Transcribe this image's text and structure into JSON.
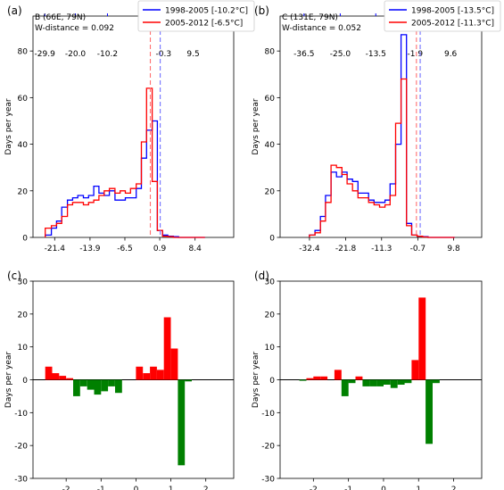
{
  "chart_data": [
    {
      "type": "line",
      "panel_label": "(a)",
      "site": "B (66E, 79N)",
      "metric": "W-distance = 0.092",
      "ylabel": "Days per year",
      "ylim": [
        0,
        95
      ],
      "xlim": [
        -26,
        16.6
      ],
      "yticks": [
        "0",
        "20",
        "40",
        "60",
        "80"
      ],
      "yticks_values": [
        0,
        20,
        40,
        60,
        80
      ],
      "xticks": [
        "-21.4",
        "-13.9",
        "-6.5",
        "0.9",
        "8.4"
      ],
      "xticks_values": [
        -21.4,
        -13.9,
        -6.5,
        0.9,
        8.4
      ],
      "top_ticks": [
        "-29.9",
        "-20.0",
        "-10.2",
        "-0.3",
        "9.5"
      ],
      "top_ticks_values": [
        -23.5,
        -17.0,
        -10.2,
        1.7,
        8.0
      ],
      "legend": [
        "1998-2005 [-10.2°C]",
        "2005-2012 [-6.5°C]"
      ],
      "bin_edges": [
        -23.4,
        -22.1,
        -21.0,
        -19.9,
        -18.7,
        -17.6,
        -16.5,
        -15.3,
        -14.2,
        -13.1,
        -12.0,
        -10.9,
        -9.8,
        -8.6,
        -7.5,
        -6.4,
        -5.3,
        -4.1,
        -3.0,
        -1.9,
        -0.7,
        0.4,
        1.5,
        2.6,
        3.8,
        4.9,
        6.0,
        7.2,
        8.3,
        9.4,
        10.5
      ],
      "series": [
        {
          "name": "1998-2005 [-10.2°C]",
          "color": "#0000ff",
          "values": [
            1,
            4,
            7,
            13,
            16,
            17,
            18,
            17,
            18,
            22,
            19,
            18,
            20,
            16,
            16,
            17,
            17,
            21,
            34,
            46,
            50,
            3,
            1,
            0.5,
            0.3,
            0,
            0,
            0,
            0,
            0
          ]
        },
        {
          "name": "2005-2012 [-6.5°C]",
          "color": "#ff0000",
          "values": [
            4,
            5,
            6,
            9,
            14,
            15,
            15,
            14,
            15,
            16,
            18,
            20,
            21,
            19,
            20,
            19,
            21,
            23,
            41,
            64,
            24,
            3,
            0.5,
            0.3,
            0,
            0,
            0,
            0,
            0,
            0
          ]
        }
      ],
      "vlines": [
        {
          "x": -1.1,
          "color": "#ff7070"
        },
        {
          "x": 1.0,
          "color": "#7070ff"
        }
      ]
    },
    {
      "type": "line",
      "panel_label": "(b)",
      "site": "C (131E, 79N)",
      "metric": "W-distance = 0.052",
      "ylabel": "Days per year",
      "ylim": [
        0,
        95
      ],
      "xlim": [
        -41,
        18
      ],
      "yticks": [
        "0",
        "20",
        "40",
        "60",
        "80"
      ],
      "yticks_values": [
        0,
        20,
        40,
        60,
        80
      ],
      "xticks": [
        "-32.4",
        "-21.8",
        "-11.3",
        "-0.7",
        "9.8"
      ],
      "xticks_values": [
        -32.4,
        -21.8,
        -11.3,
        -0.7,
        9.8
      ],
      "top_ticks": [
        "-36.5",
        "-25.0",
        "-13.5",
        "-1.9",
        "9.6"
      ],
      "top_ticks_values": [
        -34.0,
        -23.4,
        -13.0,
        -1.5,
        8.9
      ],
      "legend": [
        "1998-2005 [-13.5°C]",
        "2005-2012 [-11.3°C]"
      ],
      "bin_edges": [
        -32.4,
        -30.8,
        -29.2,
        -27.7,
        -26.1,
        -24.5,
        -22.9,
        -21.4,
        -19.8,
        -18.2,
        -16.6,
        -15.1,
        -13.5,
        -11.9,
        -10.3,
        -8.8,
        -7.2,
        -5.6,
        -4.0,
        -2.5,
        -0.9,
        0.7,
        2.3,
        3.8,
        5.4,
        7.0,
        8.6,
        10.1
      ],
      "series": [
        {
          "name": "1998-2005 [-13.5°C]",
          "color": "#0000ff",
          "values": [
            1,
            3,
            9,
            18,
            28,
            26,
            28,
            25,
            24,
            19,
            19,
            16,
            15,
            15,
            16,
            23,
            40,
            87,
            6,
            1,
            0.5,
            0.3,
            0,
            0,
            0,
            0,
            0
          ]
        },
        {
          "name": "2005-2012 [-11.3°C]",
          "color": "#ff0000",
          "values": [
            1,
            2,
            7,
            15,
            31,
            30,
            27,
            23,
            20,
            17,
            17,
            15,
            14,
            13,
            14,
            18,
            49,
            68,
            5,
            1,
            0.5,
            0.2,
            0,
            0,
            0,
            0,
            0
          ]
        }
      ],
      "vlines": [
        {
          "x": -1.1,
          "color": "#ff7070"
        },
        {
          "x": 0.0,
          "color": "#7070ff"
        }
      ]
    },
    {
      "type": "bar",
      "panel_label": "(c)",
      "ylabel": "Days per year",
      "ylim": [
        -30,
        30
      ],
      "xlim": [
        -2.95,
        2.8
      ],
      "yticks": [
        "-30",
        "-20",
        "-10",
        "0",
        "10",
        "20",
        "30"
      ],
      "yticks_values": [
        -30,
        -20,
        -10,
        0,
        10,
        20,
        30
      ],
      "xticks": [
        "-2",
        "-1",
        "0",
        "1",
        "2"
      ],
      "xticks_values": [
        -2,
        -1,
        0,
        1,
        2
      ],
      "bar_width": 0.2,
      "x": [
        -2.5,
        -2.3,
        -2.1,
        -1.9,
        -1.7,
        -1.5,
        -1.3,
        -1.1,
        -0.9,
        -0.7,
        -0.5,
        -0.3,
        -0.1,
        0.1,
        0.3,
        0.5,
        0.7,
        0.9,
        1.1,
        1.3,
        1.5,
        1.7,
        1.9,
        2.1,
        2.3
      ],
      "values": [
        4,
        2,
        1.2,
        0.5,
        -5,
        -2,
        -3,
        -4.5,
        -3.5,
        -2,
        -4,
        0,
        0,
        4,
        2,
        4,
        3,
        19,
        9.5,
        -26,
        -0.5,
        0,
        0,
        0,
        0
      ],
      "colors": {
        "positive": "#ff0000",
        "negative": "#008000"
      }
    },
    {
      "type": "bar",
      "panel_label": "(d)",
      "ylabel": "Days per year",
      "ylim": [
        -30,
        30
      ],
      "xlim": [
        -2.95,
        2.8
      ],
      "yticks": [
        "-30",
        "-20",
        "-10",
        "0",
        "10",
        "20",
        "30"
      ],
      "yticks_values": [
        -30,
        -20,
        -10,
        0,
        10,
        20,
        30
      ],
      "xticks": [
        "-2",
        "-1",
        "0",
        "1",
        "2"
      ],
      "xticks_values": [
        -2,
        -1,
        0,
        1,
        2
      ],
      "bar_width": 0.2,
      "x": [
        -2.5,
        -2.3,
        -2.1,
        -1.9,
        -1.7,
        -1.5,
        -1.3,
        -1.1,
        -0.9,
        -0.7,
        -0.5,
        -0.3,
        -0.1,
        0.1,
        0.3,
        0.5,
        0.7,
        0.9,
        1.1,
        1.3,
        1.5,
        1.7,
        1.9,
        2.1,
        2.3
      ],
      "values": [
        0,
        -0.3,
        0.5,
        1,
        1,
        0,
        3,
        -5,
        -1,
        1,
        -2,
        -2,
        -2,
        -1.5,
        -2.5,
        -1.5,
        -1,
        6,
        25,
        -19.5,
        -1,
        0,
        0,
        0,
        0
      ],
      "colors": {
        "positive": "#ff0000",
        "negative": "#008000"
      }
    }
  ]
}
